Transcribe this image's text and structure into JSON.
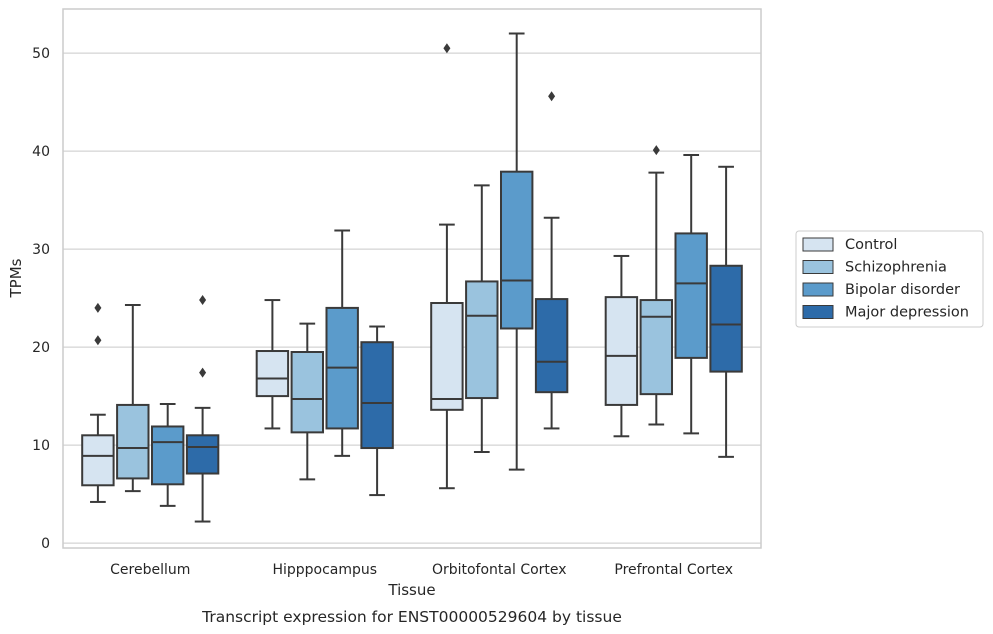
{
  "chart_data": {
    "type": "box",
    "xlabel": "Tissue",
    "ylabel": "TPMs",
    "caption": "Transcript expression for ENST00000529604 by tissue",
    "ylim": [
      -0.5,
      54.5
    ],
    "yticks": [
      0,
      10,
      20,
      30,
      40,
      50
    ],
    "grid": true,
    "legend_position": "right",
    "categories": [
      "Cerebellum",
      "Hipppocampus",
      "Orbitofontal Cortex",
      "Prefrontal Cortex"
    ],
    "series": [
      {
        "name": "Control",
        "color": "#d6e4f1",
        "boxes": [
          {
            "whislo": 4.2,
            "q1": 5.9,
            "med": 8.9,
            "q3": 11.0,
            "whishi": 13.1,
            "fliers": [
              20.7,
              24.0
            ]
          },
          {
            "whislo": 11.7,
            "q1": 15.0,
            "med": 16.8,
            "q3": 19.6,
            "whishi": 24.8,
            "fliers": []
          },
          {
            "whislo": 5.6,
            "q1": 13.6,
            "med": 14.7,
            "q3": 24.5,
            "whishi": 32.5,
            "fliers": [
              50.5
            ]
          },
          {
            "whislo": 10.9,
            "q1": 14.1,
            "med": 19.1,
            "q3": 25.1,
            "whishi": 29.3,
            "fliers": []
          }
        ]
      },
      {
        "name": "Schizophrenia",
        "color": "#9ac3de",
        "boxes": [
          {
            "whislo": 5.3,
            "q1": 6.6,
            "med": 9.7,
            "q3": 14.1,
            "whishi": 24.3,
            "fliers": []
          },
          {
            "whislo": 6.5,
            "q1": 11.3,
            "med": 14.7,
            "q3": 19.5,
            "whishi": 22.4,
            "fliers": []
          },
          {
            "whislo": 9.3,
            "q1": 14.8,
            "med": 23.2,
            "q3": 26.7,
            "whishi": 36.5,
            "fliers": []
          },
          {
            "whislo": 12.1,
            "q1": 15.2,
            "med": 23.1,
            "q3": 24.8,
            "whishi": 37.8,
            "fliers": [
              40.1
            ]
          }
        ]
      },
      {
        "name": "Bipolar disorder",
        "color": "#5b9bcb",
        "boxes": [
          {
            "whislo": 3.8,
            "q1": 6.0,
            "med": 10.3,
            "q3": 11.9,
            "whishi": 14.2,
            "fliers": []
          },
          {
            "whislo": 8.9,
            "q1": 11.7,
            "med": 17.9,
            "q3": 24.0,
            "whishi": 31.9,
            "fliers": []
          },
          {
            "whislo": 7.5,
            "q1": 21.9,
            "med": 26.8,
            "q3": 37.9,
            "whishi": 52.0,
            "fliers": []
          },
          {
            "whislo": 11.2,
            "q1": 18.9,
            "med": 26.5,
            "q3": 31.6,
            "whishi": 39.6,
            "fliers": []
          }
        ]
      },
      {
        "name": "Major depression",
        "color": "#2d6ba9",
        "boxes": [
          {
            "whislo": 2.2,
            "q1": 7.1,
            "med": 9.8,
            "q3": 11.0,
            "whishi": 13.8,
            "fliers": [
              17.4,
              24.8
            ]
          },
          {
            "whislo": 4.9,
            "q1": 9.7,
            "med": 14.3,
            "q3": 20.5,
            "whishi": 22.1,
            "fliers": []
          },
          {
            "whislo": 11.7,
            "q1": 15.4,
            "med": 18.5,
            "q3": 24.9,
            "whishi": 33.2,
            "fliers": [
              45.6
            ]
          },
          {
            "whislo": 8.8,
            "q1": 17.5,
            "med": 22.3,
            "q3": 28.3,
            "whishi": 38.4,
            "fliers": []
          }
        ]
      }
    ]
  }
}
